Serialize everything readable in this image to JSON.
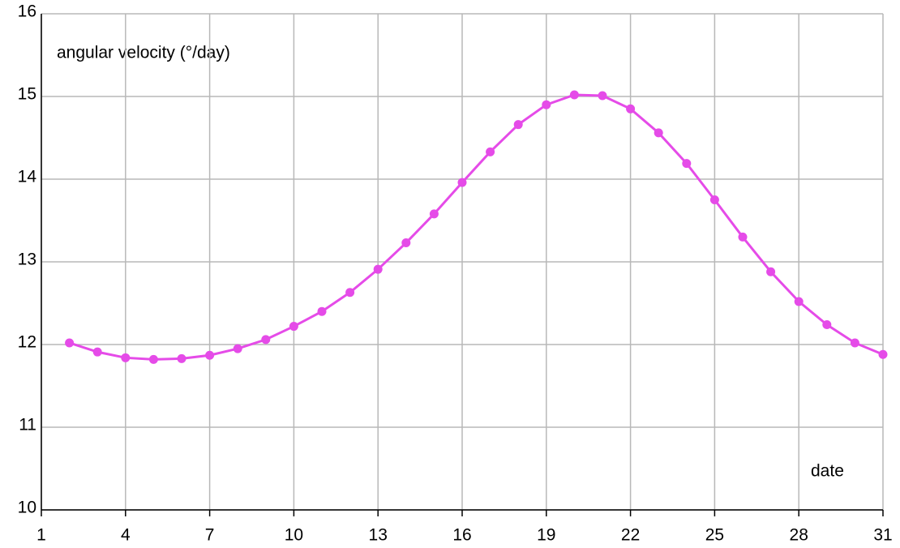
{
  "chart_data": {
    "type": "line",
    "y_label": "angular velocity (°/day)",
    "x_label": "date",
    "x": [
      2,
      3,
      4,
      5,
      6,
      7,
      8,
      9,
      10,
      11,
      12,
      13,
      14,
      15,
      16,
      17,
      18,
      19,
      20,
      21,
      22,
      23,
      24,
      25,
      26,
      27,
      28,
      29,
      30,
      31
    ],
    "series": [
      {
        "color": "#e54be8",
        "values": [
          12.02,
          11.91,
          11.84,
          11.82,
          11.83,
          11.87,
          11.95,
          12.06,
          12.22,
          12.4,
          12.63,
          12.91,
          13.23,
          13.58,
          13.96,
          14.33,
          14.66,
          14.9,
          15.02,
          15.01,
          14.85,
          14.56,
          14.19,
          13.75,
          13.3,
          12.88,
          12.52,
          12.24,
          12.02,
          11.88
        ]
      }
    ],
    "xlim": [
      1,
      31
    ],
    "xticks": [
      1,
      4,
      7,
      10,
      13,
      16,
      19,
      22,
      25,
      28,
      31
    ],
    "ylim": [
      10,
      16
    ],
    "yticks": [
      10,
      11,
      12,
      13,
      14,
      15,
      16
    ],
    "grid": true
  }
}
